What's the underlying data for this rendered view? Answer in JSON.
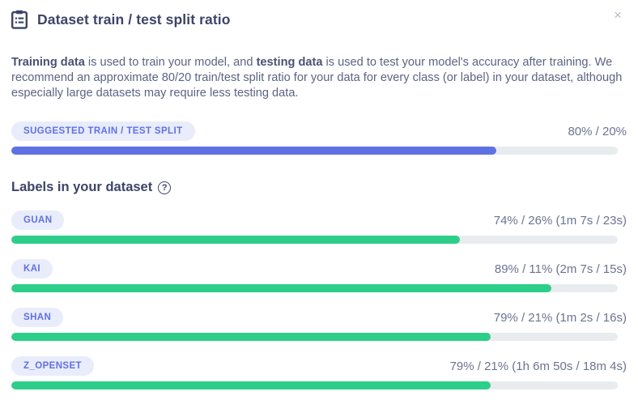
{
  "header": {
    "title": "Dataset train / test split ratio",
    "close_label": "×"
  },
  "description": {
    "bold1": "Training data",
    "text1": " is used to train your model, and ",
    "bold2": "testing data",
    "text2": " is used to test your model's accuracy after training. We recommend an approximate 80/20 train/test split ratio for your data for every class (or label) in your dataset, although especially large datasets may require less testing data."
  },
  "suggested": {
    "badge": "SUGGESTED TRAIN / TEST SPLIT",
    "value": "80% / 20%",
    "train_pct": 80
  },
  "labels_section": {
    "heading": "Labels in your dataset",
    "help_icon": "?"
  },
  "labels": [
    {
      "name": "GUAN",
      "value": "74% / 26% (1m 7s / 23s)",
      "train_pct": 74
    },
    {
      "name": "KAI",
      "value": "89% / 11% (2m 7s / 15s)",
      "train_pct": 89
    },
    {
      "name": "SHAN",
      "value": "79% / 21% (1m 2s / 16s)",
      "train_pct": 79
    },
    {
      "name": "Z_OPENSET",
      "value": "79% / 21% (1h 6m 50s / 18m 4s)",
      "train_pct": 79
    }
  ],
  "colors": {
    "accent_blue": "#5e72e4",
    "success_green": "#2dce89",
    "track_gray": "#e9ecef",
    "badge_bg": "#e9ecfb",
    "heading_navy": "#3d4468"
  }
}
